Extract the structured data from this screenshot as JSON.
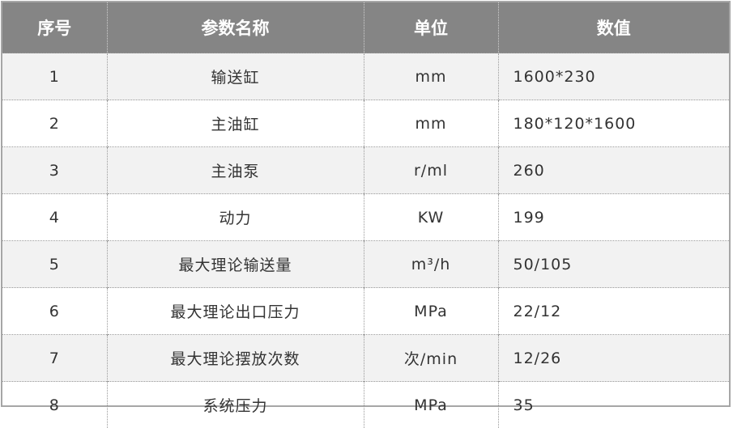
{
  "headers": [
    "序号",
    "参数名称",
    "单位",
    "数值"
  ],
  "rows": [
    [
      "1",
      "输送缸",
      "mm",
      "1600*230"
    ],
    [
      "2",
      "主油缸",
      "mm",
      "180*120*1600"
    ],
    [
      "3",
      "主油泵",
      "r/ml",
      "260"
    ],
    [
      "4",
      "动力",
      "KW",
      "199"
    ],
    [
      "5",
      "最大理论输送量",
      "m³/h",
      "50/105"
    ],
    [
      "6",
      "最大理论出口压力",
      "MPa",
      "22/12"
    ],
    [
      "7",
      "最大理论摆放次数",
      "次/min",
      "12/26"
    ],
    [
      "8",
      "系统压力",
      "MPa",
      "35"
    ]
  ],
  "colors": {
    "header_bg": "#858585",
    "stripe_bg": "#f2f2f2"
  }
}
